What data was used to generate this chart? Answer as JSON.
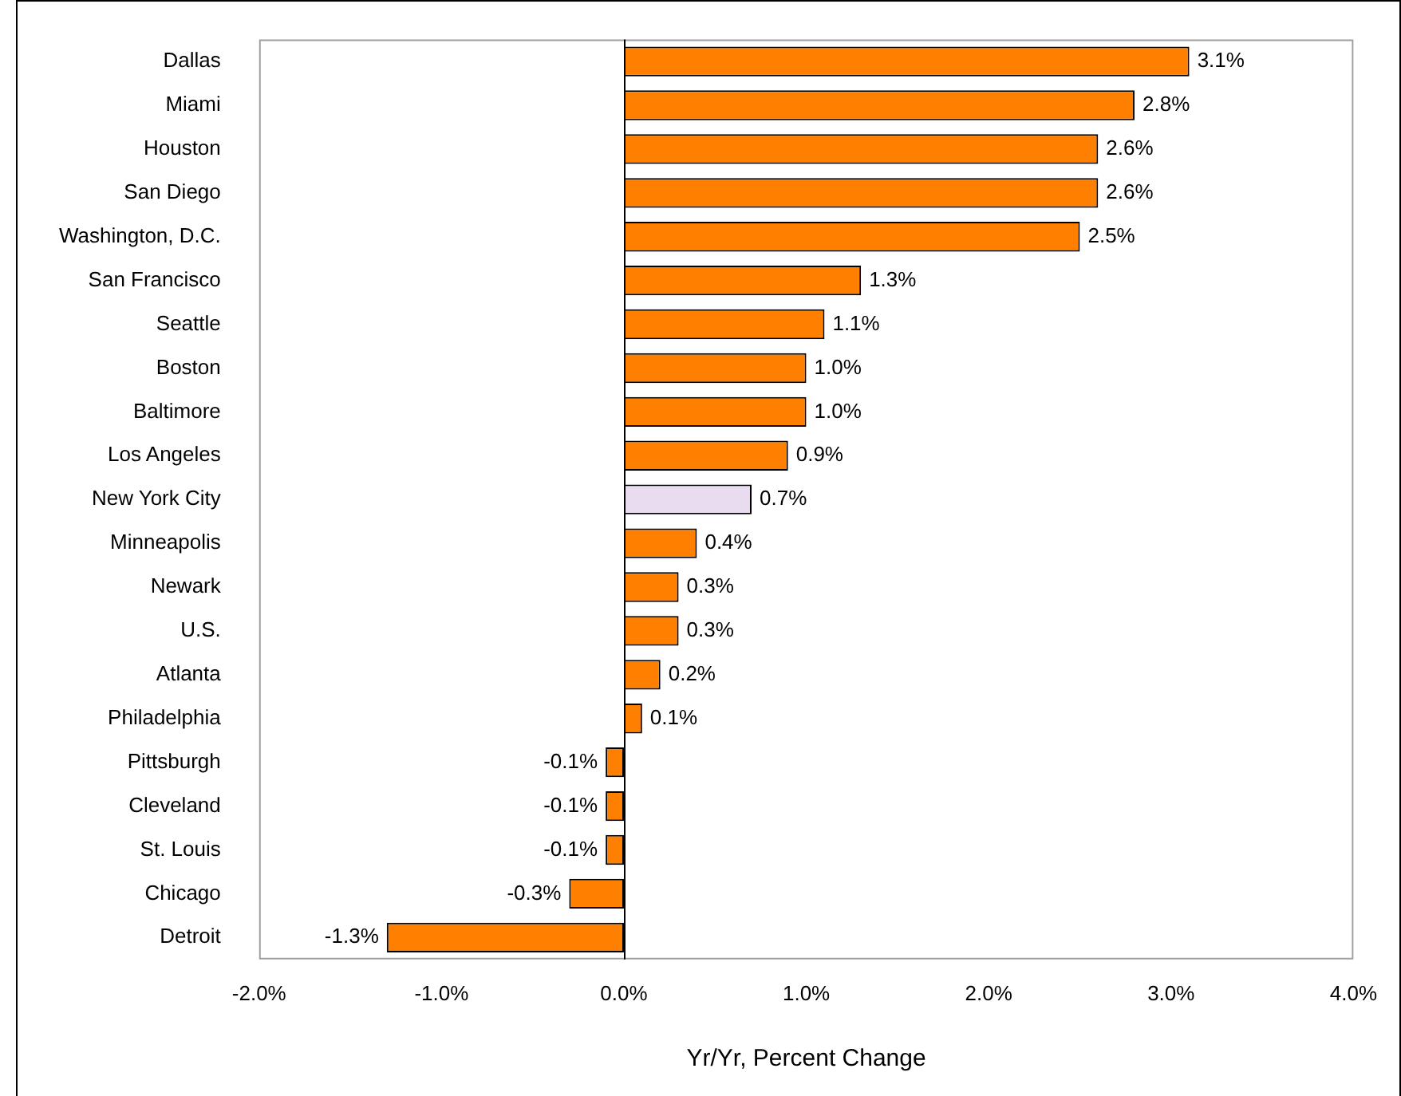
{
  "chart_data": {
    "type": "bar",
    "orientation": "horizontal",
    "xlabel": "Yr/Yr, Percent Change",
    "categories": [
      "Dallas",
      "Miami",
      "Houston",
      "San Diego",
      "Washington, D.C.",
      "San Francisco",
      "Seattle",
      "Boston",
      "Baltimore",
      "Los Angeles",
      "New York City",
      "Minneapolis",
      "Newark",
      "U.S.",
      "Atlanta",
      "Philadelphia",
      "Pittsburgh",
      "Cleveland",
      "St. Louis",
      "Chicago",
      "Detroit"
    ],
    "values": [
      3.1,
      2.8,
      2.6,
      2.6,
      2.5,
      1.3,
      1.1,
      1.0,
      1.0,
      0.9,
      0.7,
      0.4,
      0.3,
      0.3,
      0.2,
      0.1,
      -0.1,
      -0.1,
      -0.1,
      -0.3,
      -1.3
    ],
    "value_labels": [
      "3.1%",
      "2.8%",
      "2.6%",
      "2.6%",
      "2.5%",
      "1.3%",
      "1.1%",
      "1.0%",
      "1.0%",
      "0.9%",
      "0.7%",
      "0.4%",
      "0.3%",
      "0.3%",
      "0.2%",
      "0.1%",
      "-0.1%",
      "-0.1%",
      "-0.1%",
      "-0.3%",
      "-1.3%"
    ],
    "colors": [
      "#ff8000",
      "#ff8000",
      "#ff8000",
      "#ff8000",
      "#ff8000",
      "#ff8000",
      "#ff8000",
      "#ff8000",
      "#ff8000",
      "#ff8000",
      "#eadcf0",
      "#ff8000",
      "#ff8000",
      "#ff8000",
      "#ff8000",
      "#ff8000",
      "#ff8000",
      "#ff8000",
      "#ff8000",
      "#ff8000",
      "#ff8000"
    ],
    "xlim": [
      -2,
      4
    ],
    "xticks": [
      {
        "value": -2,
        "label": "-2.0%"
      },
      {
        "value": -1,
        "label": "-1.0%"
      },
      {
        "value": 0,
        "label": "0.0%"
      },
      {
        "value": 1,
        "label": "1.0%"
      },
      {
        "value": 2,
        "label": "2.0%"
      },
      {
        "value": 3,
        "label": "3.0%"
      },
      {
        "value": 4,
        "label": "4.0%"
      }
    ],
    "ref_lines": [
      {
        "axis": "x",
        "value": 0,
        "color": "#000000"
      }
    ],
    "legend": false
  }
}
